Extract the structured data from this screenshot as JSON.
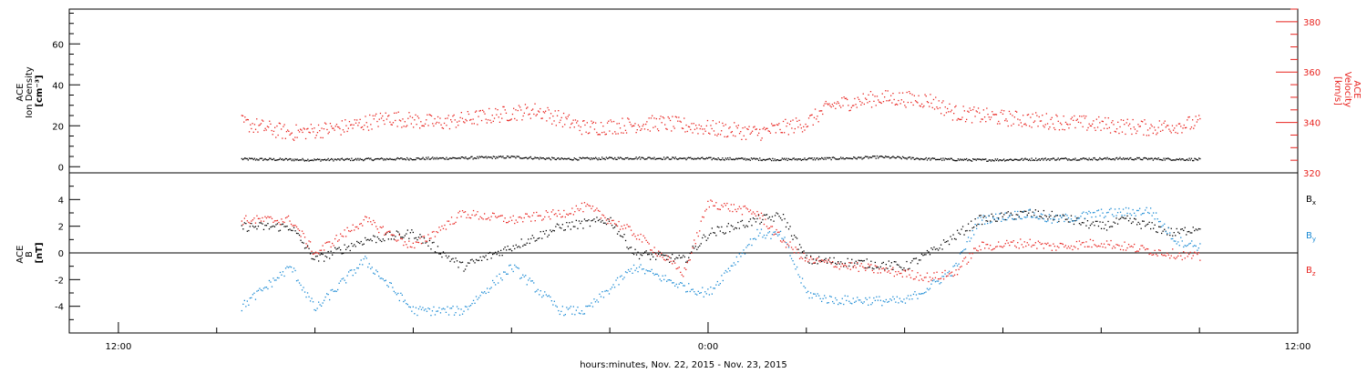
{
  "chart_data": [
    {
      "type": "scatter",
      "panel": "top",
      "ylabel_left": [
        "ACE",
        "Ion Density",
        "[cm⁻³]"
      ],
      "ylabel_right": [
        "ACE",
        "Velocity",
        "[km/s]"
      ],
      "y_left_lim": [
        -3,
        77
      ],
      "y_left_ticks": [
        "0",
        "20",
        "40",
        "60"
      ],
      "y_left_tick_values": [
        0,
        20,
        40,
        60
      ],
      "y_right_lim": [
        320,
        385
      ],
      "y_right_ticks": [
        "320",
        "340",
        "360",
        "380"
      ],
      "y_right_tick_values": [
        320,
        340,
        360,
        380
      ],
      "x_range_hours": [
        -13,
        12
      ],
      "data_extent_hours": [
        -9.5,
        10
      ],
      "series": [
        {
          "axis": "left",
          "color": "#000000",
          "points": [
            [
              -9.5,
              4
            ],
            [
              -8,
              3.6
            ],
            [
              -6.5,
              4
            ],
            [
              -5,
              4.5
            ],
            [
              -4,
              5
            ],
            [
              -3,
              4
            ],
            [
              -1.5,
              4.5
            ],
            [
              0,
              4.2
            ],
            [
              1.5,
              3.8
            ],
            [
              3,
              4.5
            ],
            [
              3.5,
              5
            ],
            [
              4.5,
              4
            ],
            [
              5.5,
              3.5
            ],
            [
              7,
              4
            ],
            [
              8.5,
              4.2
            ],
            [
              10,
              3.8
            ]
          ]
        },
        {
          "axis": "right",
          "color": "#e8231f",
          "points": [
            [
              -9.5,
              340
            ],
            [
              -8.5,
              336
            ],
            [
              -7.5,
              338
            ],
            [
              -6.5,
              342
            ],
            [
              -5.5,
              340
            ],
            [
              -4,
              344
            ],
            [
              -3.5,
              345
            ],
            [
              -2.5,
              338
            ],
            [
              -1,
              340
            ],
            [
              0,
              338
            ],
            [
              1,
              336
            ],
            [
              2,
              340
            ],
            [
              2.5,
              347
            ],
            [
              3.5,
              350
            ],
            [
              4.5,
              349
            ],
            [
              5,
              344
            ],
            [
              6,
              342
            ],
            [
              7.5,
              340
            ],
            [
              9,
              338
            ],
            [
              10,
              340
            ]
          ]
        }
      ]
    },
    {
      "type": "scatter",
      "panel": "bottom",
      "ylabel_left": [
        "ACE",
        "B",
        "[nT]"
      ],
      "ylim": [
        -6,
        6
      ],
      "yticks": [
        "-4",
        "-2",
        "0",
        "2",
        "4"
      ],
      "ytick_values": [
        -4,
        -2,
        0,
        2,
        4
      ],
      "x_range_hours": [
        -13,
        12
      ],
      "xticks": [
        "12:00",
        "0:00",
        "12:00"
      ],
      "xtick_hours": [
        -12,
        0,
        12
      ],
      "xlabel": "hours:minutes, Nov. 22, 2015 - Nov. 23, 2015",
      "data_extent_hours": [
        -9.5,
        10
      ],
      "series": [
        {
          "name": "Bx",
          "base": "B",
          "sub": "x",
          "color": "#000000",
          "points": [
            [
              -9.5,
              2
            ],
            [
              -8.5,
              2
            ],
            [
              -8,
              -0.5
            ],
            [
              -7,
              1
            ],
            [
              -6,
              1.5
            ],
            [
              -5,
              -1
            ],
            [
              -4,
              0.5
            ],
            [
              -3,
              2
            ],
            [
              -2,
              2.5
            ],
            [
              -1.5,
              0
            ],
            [
              -0.5,
              -0.5
            ],
            [
              0,
              1.5
            ],
            [
              1,
              2.5
            ],
            [
              1.5,
              2.8
            ],
            [
              2,
              -0.5
            ],
            [
              3,
              -0.7
            ],
            [
              4,
              -1
            ],
            [
              4.5,
              0
            ],
            [
              5.5,
              2.5
            ],
            [
              6.5,
              3
            ],
            [
              7,
              2.8
            ],
            [
              8,
              2
            ],
            [
              8.5,
              2.5
            ],
            [
              9,
              2
            ],
            [
              9.5,
              1.5
            ],
            [
              10,
              2
            ]
          ]
        },
        {
          "name": "By",
          "base": "B",
          "sub": "y",
          "color": "#1a8ad4",
          "points": [
            [
              -9.5,
              -4
            ],
            [
              -8.5,
              -1
            ],
            [
              -8,
              -4.2
            ],
            [
              -7,
              -0.5
            ],
            [
              -6,
              -4.3
            ],
            [
              -5,
              -4.3
            ],
            [
              -4,
              -1
            ],
            [
              -3,
              -4.3
            ],
            [
              -2.5,
              -4.3
            ],
            [
              -1.5,
              -1
            ],
            [
              -0.5,
              -2.5
            ],
            [
              0,
              -3
            ],
            [
              1,
              1.5
            ],
            [
              1.5,
              1.3
            ],
            [
              2,
              -3
            ],
            [
              2.5,
              -3.5
            ],
            [
              3,
              -3.5
            ],
            [
              4,
              -3.6
            ],
            [
              4.5,
              -2.5
            ],
            [
              5,
              -1.2
            ],
            [
              5.5,
              2.5
            ],
            [
              6.5,
              3
            ],
            [
              7,
              2.5
            ],
            [
              8,
              3
            ],
            [
              9,
              3.2
            ],
            [
              9.5,
              1
            ],
            [
              10,
              0.5
            ]
          ]
        },
        {
          "name": "Bz",
          "base": "B",
          "sub": "z",
          "color": "#e8231f",
          "points": [
            [
              -9.5,
              2.5
            ],
            [
              -8.5,
              2.5
            ],
            [
              -8,
              0
            ],
            [
              -7,
              2.5
            ],
            [
              -6,
              0.5
            ],
            [
              -5,
              3
            ],
            [
              -4,
              2.5
            ],
            [
              -3,
              3
            ],
            [
              -2.5,
              3.5
            ],
            [
              -1.5,
              1.5
            ],
            [
              -0.5,
              -1.5
            ],
            [
              0,
              3.8
            ],
            [
              1,
              3
            ],
            [
              1.5,
              1
            ],
            [
              2,
              -0.5
            ],
            [
              3,
              -1
            ],
            [
              4,
              -1.5
            ],
            [
              4.5,
              -1.8
            ],
            [
              5,
              -1.5
            ],
            [
              5.5,
              0.5
            ],
            [
              6.5,
              0.8
            ],
            [
              7,
              0.5
            ],
            [
              8,
              0.8
            ],
            [
              9,
              0.2
            ],
            [
              10,
              -0.3
            ]
          ]
        }
      ]
    }
  ]
}
